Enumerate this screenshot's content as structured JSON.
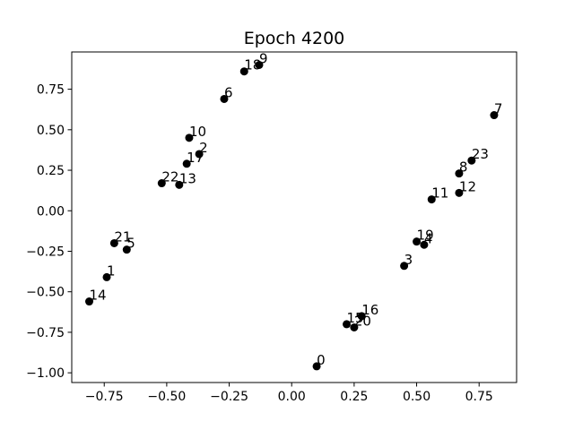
{
  "chart_data": {
    "type": "scatter",
    "title": "Epoch 4200",
    "xlabel": "",
    "ylabel": "",
    "xlim": [
      -0.88,
      0.9
    ],
    "ylim": [
      -1.06,
      0.98
    ],
    "grid": false,
    "marker_color": "#000000",
    "x_ticks": [
      -0.75,
      -0.5,
      -0.25,
      0.0,
      0.25,
      0.5,
      0.75
    ],
    "x_tick_labels": [
      "−0.75",
      "−0.50",
      "−0.25",
      "0.00",
      "0.25",
      "0.50",
      "0.75"
    ],
    "y_ticks": [
      -1.0,
      -0.75,
      -0.5,
      -0.25,
      0.0,
      0.25,
      0.5,
      0.75
    ],
    "y_tick_labels": [
      "−1.00",
      "−0.75",
      "−0.50",
      "−0.25",
      "0.00",
      "0.25",
      "0.50",
      "0.75"
    ],
    "points": [
      {
        "label": "0",
        "x": 0.1,
        "y": -0.96
      },
      {
        "label": "1",
        "x": -0.74,
        "y": -0.41
      },
      {
        "label": "2",
        "x": -0.37,
        "y": 0.35
      },
      {
        "label": "3",
        "x": 0.45,
        "y": -0.34
      },
      {
        "label": "4",
        "x": 0.53,
        "y": -0.21
      },
      {
        "label": "5",
        "x": -0.66,
        "y": -0.24
      },
      {
        "label": "6",
        "x": -0.27,
        "y": 0.69
      },
      {
        "label": "7",
        "x": 0.81,
        "y": 0.59
      },
      {
        "label": "8",
        "x": 0.67,
        "y": 0.23
      },
      {
        "label": "9",
        "x": -0.13,
        "y": 0.9
      },
      {
        "label": "10",
        "x": -0.41,
        "y": 0.45
      },
      {
        "label": "11",
        "x": 0.56,
        "y": 0.07
      },
      {
        "label": "12",
        "x": 0.67,
        "y": 0.11
      },
      {
        "label": "13",
        "x": -0.45,
        "y": 0.16
      },
      {
        "label": "14",
        "x": -0.81,
        "y": -0.56
      },
      {
        "label": "15",
        "x": 0.22,
        "y": -0.7
      },
      {
        "label": "16",
        "x": 0.28,
        "y": -0.65
      },
      {
        "label": "17",
        "x": -0.42,
        "y": 0.29
      },
      {
        "label": "18",
        "x": -0.19,
        "y": 0.86
      },
      {
        "label": "19",
        "x": 0.5,
        "y": -0.19
      },
      {
        "label": "20",
        "x": 0.25,
        "y": -0.72
      },
      {
        "label": "21",
        "x": -0.71,
        "y": -0.2
      },
      {
        "label": "22",
        "x": -0.52,
        "y": 0.17
      },
      {
        "label": "23",
        "x": 0.72,
        "y": 0.31
      }
    ]
  }
}
